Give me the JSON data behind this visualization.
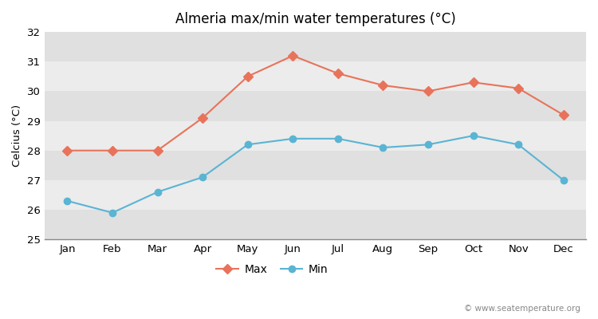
{
  "title": "Almeria max/min water temperatures (°C)",
  "ylabel": "Celcius (°C)",
  "months": [
    "Jan",
    "Feb",
    "Mar",
    "Apr",
    "May",
    "Jun",
    "Jul",
    "Aug",
    "Sep",
    "Oct",
    "Nov",
    "Dec"
  ],
  "max_temps": [
    28.0,
    28.0,
    28.0,
    29.1,
    30.5,
    31.2,
    30.6,
    30.2,
    30.0,
    30.3,
    30.1,
    29.2
  ],
  "min_temps": [
    26.3,
    25.9,
    26.6,
    27.1,
    28.2,
    28.4,
    28.4,
    28.1,
    28.2,
    28.5,
    28.2,
    27.0
  ],
  "max_color": "#e8735a",
  "min_color": "#5ab4d4",
  "bg_color": "#ffffff",
  "plot_bg_color": "#e8e8e8",
  "stripe_light": "#ececec",
  "stripe_dark": "#e0e0e0",
  "ylim": [
    25,
    32
  ],
  "yticks": [
    25,
    26,
    27,
    28,
    29,
    30,
    31,
    32
  ],
  "watermark": "© www.seatemperature.org",
  "legend_max": "Max",
  "legend_min": "Min"
}
